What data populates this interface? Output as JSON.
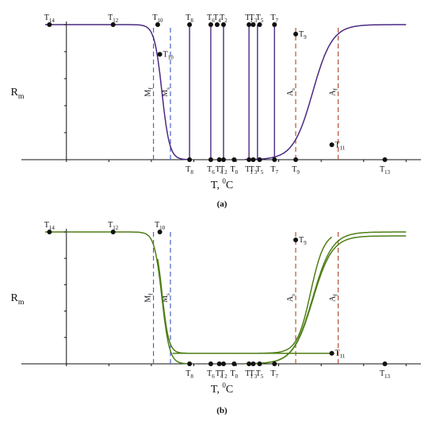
{
  "chart_data": [
    {
      "panel_label": "(a)",
      "type": "line",
      "xlabel": "T,",
      "xlabel_sup": "0",
      "xlabel_unit": "C",
      "ylabel": "R",
      "ylabel_sub": "m",
      "xlim": [
        -5,
        82
      ],
      "ylim": [
        0,
        1.0
      ],
      "xticks": [
        0,
        10,
        20,
        30,
        40,
        50,
        60,
        70,
        80
      ],
      "yticks": [
        0.2,
        0.4,
        0.6,
        0.8,
        1
      ],
      "colors": {
        "curve": "#4b2a82",
        "martensite_line": "#4b63c8",
        "austenite_line": "#b8523a",
        "point": "#111111"
      },
      "series": [
        {
          "kind": "cooling",
          "from": 1,
          "to": 0,
          "mid": 22.5,
          "width": 0.9,
          "x_start": -5,
          "x_end": 29
        },
        {
          "kind": "heating",
          "from": 0,
          "to": 1,
          "mid": 58,
          "width": 2.3,
          "x_start": 42,
          "x_end": 80
        }
      ],
      "vertical_segments": [
        29,
        34,
        37,
        43,
        45,
        49
      ],
      "transformation_lines": [
        {
          "label": "M",
          "sub": "f",
          "x": 20.5,
          "kind": "martensite"
        },
        {
          "label": "M",
          "sub": "s",
          "x": 24.5,
          "kind": "martensite"
        },
        {
          "label": "A",
          "sub": "s",
          "x": 54,
          "kind": "austenite"
        },
        {
          "label": "A",
          "sub": "f",
          "x": 64,
          "kind": "austenite"
        }
      ],
      "points": [
        {
          "label": "T",
          "sub": "14",
          "x": -4,
          "y": 1
        },
        {
          "label": "T",
          "sub": "12",
          "x": 11,
          "y": 1
        },
        {
          "label": "T",
          "sub": "10",
          "x": 21.5,
          "y": 1
        },
        {
          "label": "T",
          "sub": "10",
          "x": 22,
          "y": 0.78
        },
        {
          "label": "T",
          "sub": "8",
          "x": 29,
          "y": 1
        },
        {
          "label": "T",
          "sub": "6",
          "x": 34,
          "y": 1
        },
        {
          "label": "T",
          "sub": "4",
          "x": 35.5,
          "y": 1
        },
        {
          "label": "T",
          "sub": "2",
          "x": 37,
          "y": 1
        },
        {
          "label": "T",
          "sub": "1",
          "x": 43,
          "y": 1
        },
        {
          "label": "T",
          "sub": "3",
          "x": 44,
          "y": 1
        },
        {
          "label": "T",
          "sub": "5",
          "x": 45.5,
          "y": 1
        },
        {
          "label": "T",
          "sub": "7",
          "x": 49,
          "y": 1
        },
        {
          "label": "T",
          "sub": "9",
          "x": 54,
          "y": 0.93
        },
        {
          "label": "T",
          "sub": "8",
          "x": 29,
          "y": 0
        },
        {
          "label": "T",
          "sub": "6",
          "x": 34,
          "y": 0
        },
        {
          "label": "T",
          "sub": "4",
          "x": 36,
          "y": 0
        },
        {
          "label": "T",
          "sub": "0",
          "x": 39.5,
          "y": 0
        },
        {
          "label": "T",
          "sub": "2",
          "x": 37,
          "y": 0
        },
        {
          "label": "T",
          "sub": "1",
          "x": 43,
          "y": 0
        },
        {
          "label": "T",
          "sub": "3",
          "x": 44,
          "y": 0
        },
        {
          "label": "T",
          "sub": "5",
          "x": 45.5,
          "y": 0
        },
        {
          "label": "T",
          "sub": "7",
          "x": 49,
          "y": 0
        },
        {
          "label": "T",
          "sub": "9",
          "x": 54,
          "y": 0
        },
        {
          "label": "T",
          "sub": "11",
          "x": 62.5,
          "y": 0.11
        },
        {
          "label": "T",
          "sub": "13",
          "x": 75,
          "y": 0
        }
      ]
    },
    {
      "panel_label": "(b)",
      "type": "line",
      "xlabel": "T,",
      "xlabel_sup": "0",
      "xlabel_unit": "C",
      "ylabel": "R",
      "ylabel_sub": "m",
      "xlim": [
        -5,
        82
      ],
      "ylim": [
        0,
        1.0
      ],
      "xticks": [
        0,
        10,
        20,
        30,
        40,
        50,
        60,
        70,
        80
      ],
      "yticks": [
        0.2,
        0.4,
        0.6,
        0.8,
        1
      ],
      "colors": {
        "curve": "#4f7f16",
        "martensite_line": "#4b63c8",
        "austenite_line": "#b8523a",
        "point": "#111111"
      },
      "series": [
        {
          "kind": "cooling",
          "from": 1,
          "to": 0,
          "mid": 22.5,
          "width": 0.9,
          "x_start": -5,
          "x_end": 29
        },
        {
          "kind": "partial",
          "from": 1,
          "to": 0.08,
          "mid": 22.5,
          "width": 0.8,
          "x_start": 21.5,
          "x_end": 62.5
        },
        {
          "kind": "heating",
          "from": 0.08,
          "to": 1,
          "mid": 57.5,
          "width": 1.6,
          "x_start": 62.5,
          "x_end": 25,
          "reverse": true
        },
        {
          "kind": "heating",
          "from": 0,
          "to": 1,
          "mid": 58,
          "width": 2.3,
          "x_start": 42,
          "x_end": 80
        },
        {
          "kind": "heating",
          "from": 0,
          "to": 1,
          "mid": 58,
          "width": 2.3,
          "x_start": 42,
          "x_end": 80,
          "scale": 0.97
        }
      ],
      "vertical_segments": [],
      "transformation_lines": [
        {
          "label": "M",
          "sub": "f",
          "x": 20.5,
          "kind": "martensite"
        },
        {
          "label": "M",
          "sub": "s",
          "x": 24.5,
          "kind": "martensite"
        },
        {
          "label": "A",
          "sub": "s",
          "x": 54,
          "kind": "austenite"
        },
        {
          "label": "A",
          "sub": "f",
          "x": 64,
          "kind": "austenite"
        }
      ],
      "points": [
        {
          "label": "T",
          "sub": "14",
          "x": -4,
          "y": 1
        },
        {
          "label": "T",
          "sub": "12",
          "x": 11,
          "y": 1
        },
        {
          "label": "T",
          "sub": "10",
          "x": 22,
          "y": 1
        },
        {
          "label": "T",
          "sub": "9",
          "x": 54,
          "y": 0.94
        },
        {
          "label": "T",
          "sub": "8",
          "x": 29,
          "y": 0
        },
        {
          "label": "T",
          "sub": "6",
          "x": 34,
          "y": 0
        },
        {
          "label": "T",
          "sub": "4",
          "x": 36,
          "y": 0
        },
        {
          "label": "T",
          "sub": "2",
          "x": 37,
          "y": 0
        },
        {
          "label": "T",
          "sub": "0",
          "x": 39.5,
          "y": 0
        },
        {
          "label": "T",
          "sub": "1",
          "x": 43,
          "y": 0
        },
        {
          "label": "T",
          "sub": "3",
          "x": 44,
          "y": 0
        },
        {
          "label": "T",
          "sub": "5",
          "x": 45.5,
          "y": 0
        },
        {
          "label": "T",
          "sub": "7",
          "x": 49,
          "y": 0
        },
        {
          "label": "T",
          "sub": "11",
          "x": 62.5,
          "y": 0.08
        },
        {
          "label": "T",
          "sub": "13",
          "x": 75,
          "y": 0
        }
      ]
    }
  ]
}
